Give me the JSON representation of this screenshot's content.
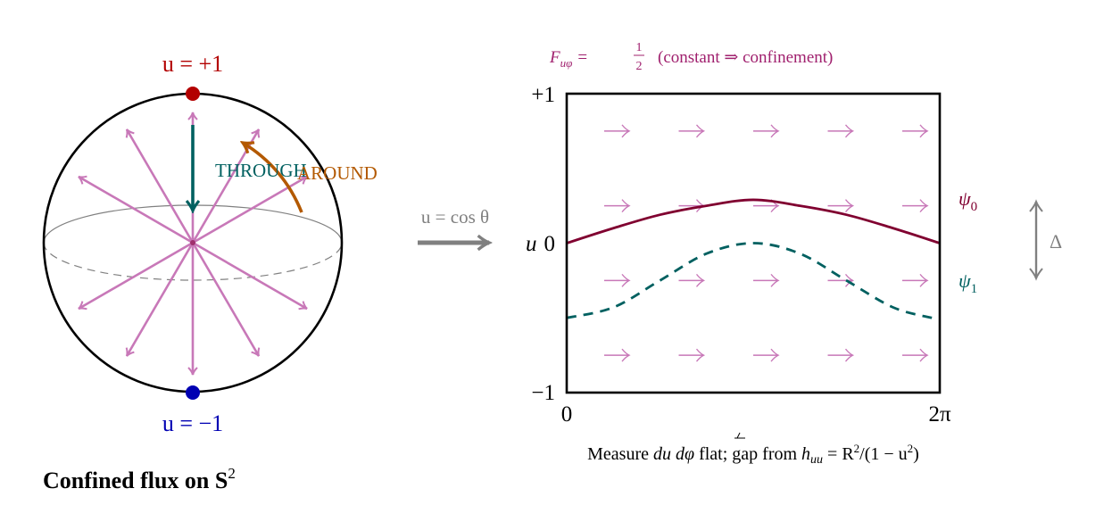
{
  "colors": {
    "north_pole": "#b30000",
    "south_pole": "#0000b3",
    "flux": "#c878b8",
    "through": "#006060",
    "around": "#b35900",
    "title_magenta": "#a0206e",
    "psi0": "#800030",
    "psi1": "#006060",
    "gray": "#808080",
    "black": "#000000"
  },
  "sphere": {
    "north_label": "u = +1",
    "south_label": "u = −1",
    "through_label": "THROUGH",
    "around_label": "AROUND",
    "caption": "Confined flux on S",
    "caption_sup": "2",
    "flux_arrow_count": 12
  },
  "map_arrow": {
    "label": "u = cos θ"
  },
  "chart_data": {
    "type": "line",
    "title": "F_{uφ} = 1/2 (constant ⇒ confinement)",
    "title_parts": {
      "lhs": "F",
      "sub": "uφ",
      "eq": "=",
      "num": "1",
      "den": "2",
      "rest": "(constant ⇒ confinement)"
    },
    "xlabel": "",
    "ylabel": "u",
    "x_ticks": [
      "0",
      "2π"
    ],
    "y_ticks": [
      "+1",
      "0",
      "−1"
    ],
    "xlim": [
      0,
      6.2832
    ],
    "ylim": [
      -1,
      1
    ],
    "background_field": {
      "description": "uniform rightward arrows (constant flux)",
      "rows_u": [
        0.75,
        0.25,
        -0.25,
        -0.75
      ],
      "cols": 5
    },
    "series": [
      {
        "name": "ψ0",
        "style": "solid",
        "x": [
          0,
          0.785,
          1.571,
          2.356,
          3.142,
          3.927,
          4.712,
          5.498,
          6.283
        ],
        "values": [
          0.0,
          0.1,
          0.19,
          0.25,
          0.29,
          0.25,
          0.19,
          0.1,
          0.0
        ]
      },
      {
        "name": "ψ1",
        "style": "dashed",
        "x": [
          0,
          0.785,
          1.571,
          2.356,
          3.142,
          3.927,
          4.712,
          5.498,
          6.15
        ],
        "values": [
          -0.5,
          -0.43,
          -0.25,
          -0.07,
          0.0,
          -0.07,
          -0.25,
          -0.43,
          -0.5
        ]
      }
    ],
    "gap_label": "Δ",
    "footnote": "Measure du dφ flat; gap from h_uu = R²/(1 − u²)"
  },
  "footnote_parts": {
    "t1": "Measure ",
    "m1": "du dφ",
    "t2": " flat; gap from ",
    "m2a": "h",
    "m2sub": "uu",
    "m2b": " = R",
    "m2sup": "2",
    "m2c": "/(1 − u",
    "m2sup2": "2",
    "m2d": ")"
  }
}
